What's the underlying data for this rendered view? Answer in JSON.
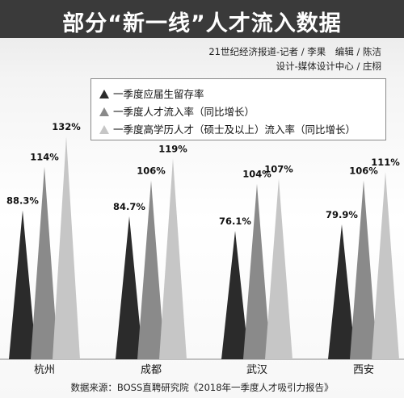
{
  "title": "部分“新一线”人才流入数据",
  "credits": {
    "line1": "21世纪经济报道-记者 / 李果　编辑 / 陈洁",
    "line2": "设计-媒体设计中心 / 庄栩"
  },
  "source": "数据来源：BOSS直聘研究院《2018年一季度人才吸引力报告》",
  "colors": {
    "series0": "#2b2b2b",
    "series1": "#8a8a8a",
    "series2": "#c6c6c6",
    "title_bg": "#3a3a3a"
  },
  "chart_data": {
    "type": "bar",
    "categories": [
      "杭州",
      "成都",
      "武汉",
      "西安"
    ],
    "series": [
      {
        "name": "一季度应届生留存率",
        "values": [
          88.3,
          84.7,
          76.1,
          79.9
        ],
        "labels": [
          "88.3%",
          "84.7%",
          "76.1%",
          "79.9%"
        ]
      },
      {
        "name": "一季度人才流入率（同比增长）",
        "values": [
          114,
          106,
          104,
          106
        ],
        "labels": [
          "114%",
          "106%",
          "104%",
          "106%"
        ]
      },
      {
        "name": "一季度高学历人才（硕士及以上）流入率（同比增长）",
        "values": [
          132,
          119,
          107,
          111
        ],
        "labels": [
          "132%",
          "119%",
          "107%",
          "111%"
        ]
      }
    ],
    "marker": "spike",
    "unit": "%"
  }
}
